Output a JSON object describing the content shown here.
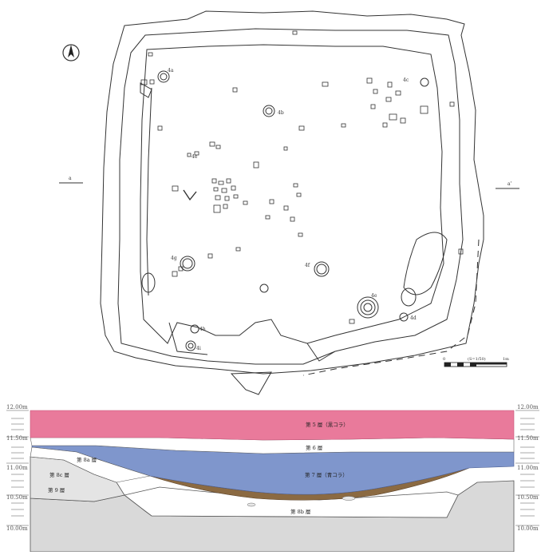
{
  "plan": {
    "north_label": "N",
    "section_end_left": "a",
    "section_end_right": "a'",
    "features": [
      {
        "label": "4a"
      },
      {
        "label": "4b"
      },
      {
        "label": "4c"
      },
      {
        "label": "4d"
      },
      {
        "label": "4e"
      },
      {
        "label": "4f"
      },
      {
        "label": "4g"
      },
      {
        "label": "4h"
      },
      {
        "label": "4i"
      },
      {
        "label": "4e"
      }
    ],
    "scale_bar": {
      "start": "0",
      "ratio": "(S=1/50)",
      "end": "1m"
    }
  },
  "section": {
    "elevations_left": [
      "12.00m",
      "11.50m",
      "11.00m",
      "10.50m",
      "10.00m"
    ],
    "elevations_right": [
      "12.00m",
      "11.50m",
      "11.00m",
      "10.50m",
      "10.00m"
    ],
    "layers": [
      {
        "label": "第 5 層（黒コラ）",
        "color": "#e97a9b"
      },
      {
        "label": "第 6 層",
        "color": "#ffffff"
      },
      {
        "label": "第 7 層（青コラ）",
        "color": "#7f96cc"
      },
      {
        "label": "第 8a 層",
        "color": "#ffffff"
      },
      {
        "label": "第 8c 層",
        "color": "#dadada"
      },
      {
        "label": "第 9 層",
        "color": "#dadada"
      },
      {
        "label": "第 8b 層",
        "color": "#ffffff"
      }
    ],
    "colors": {
      "brown_lens": "#8b6a42",
      "lower_fill": "#d9d9d9"
    }
  }
}
